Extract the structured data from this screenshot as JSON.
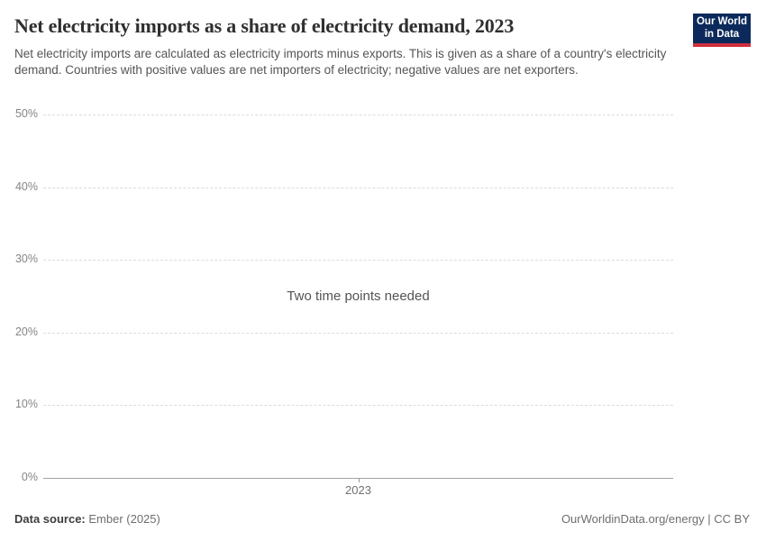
{
  "header": {
    "title": "Net electricity imports as a share of electricity demand, 2023",
    "subtitle": "Net electricity imports are calculated as electricity imports minus exports. This is given as a share of a country's electricity demand. Countries with positive values are net importers of electricity; negative values are net exporters."
  },
  "logo": {
    "line1": "Our World",
    "line2": "in Data",
    "bg_color": "#0b2a5b",
    "bar_color": "#cf303e"
  },
  "chart_data": {
    "type": "line",
    "title": "Net electricity imports as a share of electricity demand, 2023",
    "series": [],
    "empty_message": "Two time points needed",
    "x_ticks": [
      {
        "label": "2023",
        "position": 0.5
      }
    ],
    "ylim": [
      0,
      50
    ],
    "yticks": [
      {
        "value": 0,
        "label": "0%"
      },
      {
        "value": 10,
        "label": "10%"
      },
      {
        "value": 20,
        "label": "20%"
      },
      {
        "value": 30,
        "label": "30%"
      },
      {
        "value": 40,
        "label": "40%"
      },
      {
        "value": 50,
        "label": "50%"
      }
    ],
    "grid": true,
    "grid_style": "dashed",
    "legend_position": "none"
  },
  "footer": {
    "source_label": "Data source:",
    "source_value": " Ember (2025)",
    "credit": "OurWorldinData.org/energy | CC BY"
  },
  "colors": {
    "title_text": "#2f2f2f",
    "subtitle_text": "#555555",
    "gridline": "#dcdcdc",
    "axis_line": "#a3a3a3",
    "tick_text": "#858585",
    "message_text": "#545454",
    "footer_text": "#6e6e6e",
    "logo_navy": "#0b2a5b",
    "logo_red": "#cf303e"
  }
}
